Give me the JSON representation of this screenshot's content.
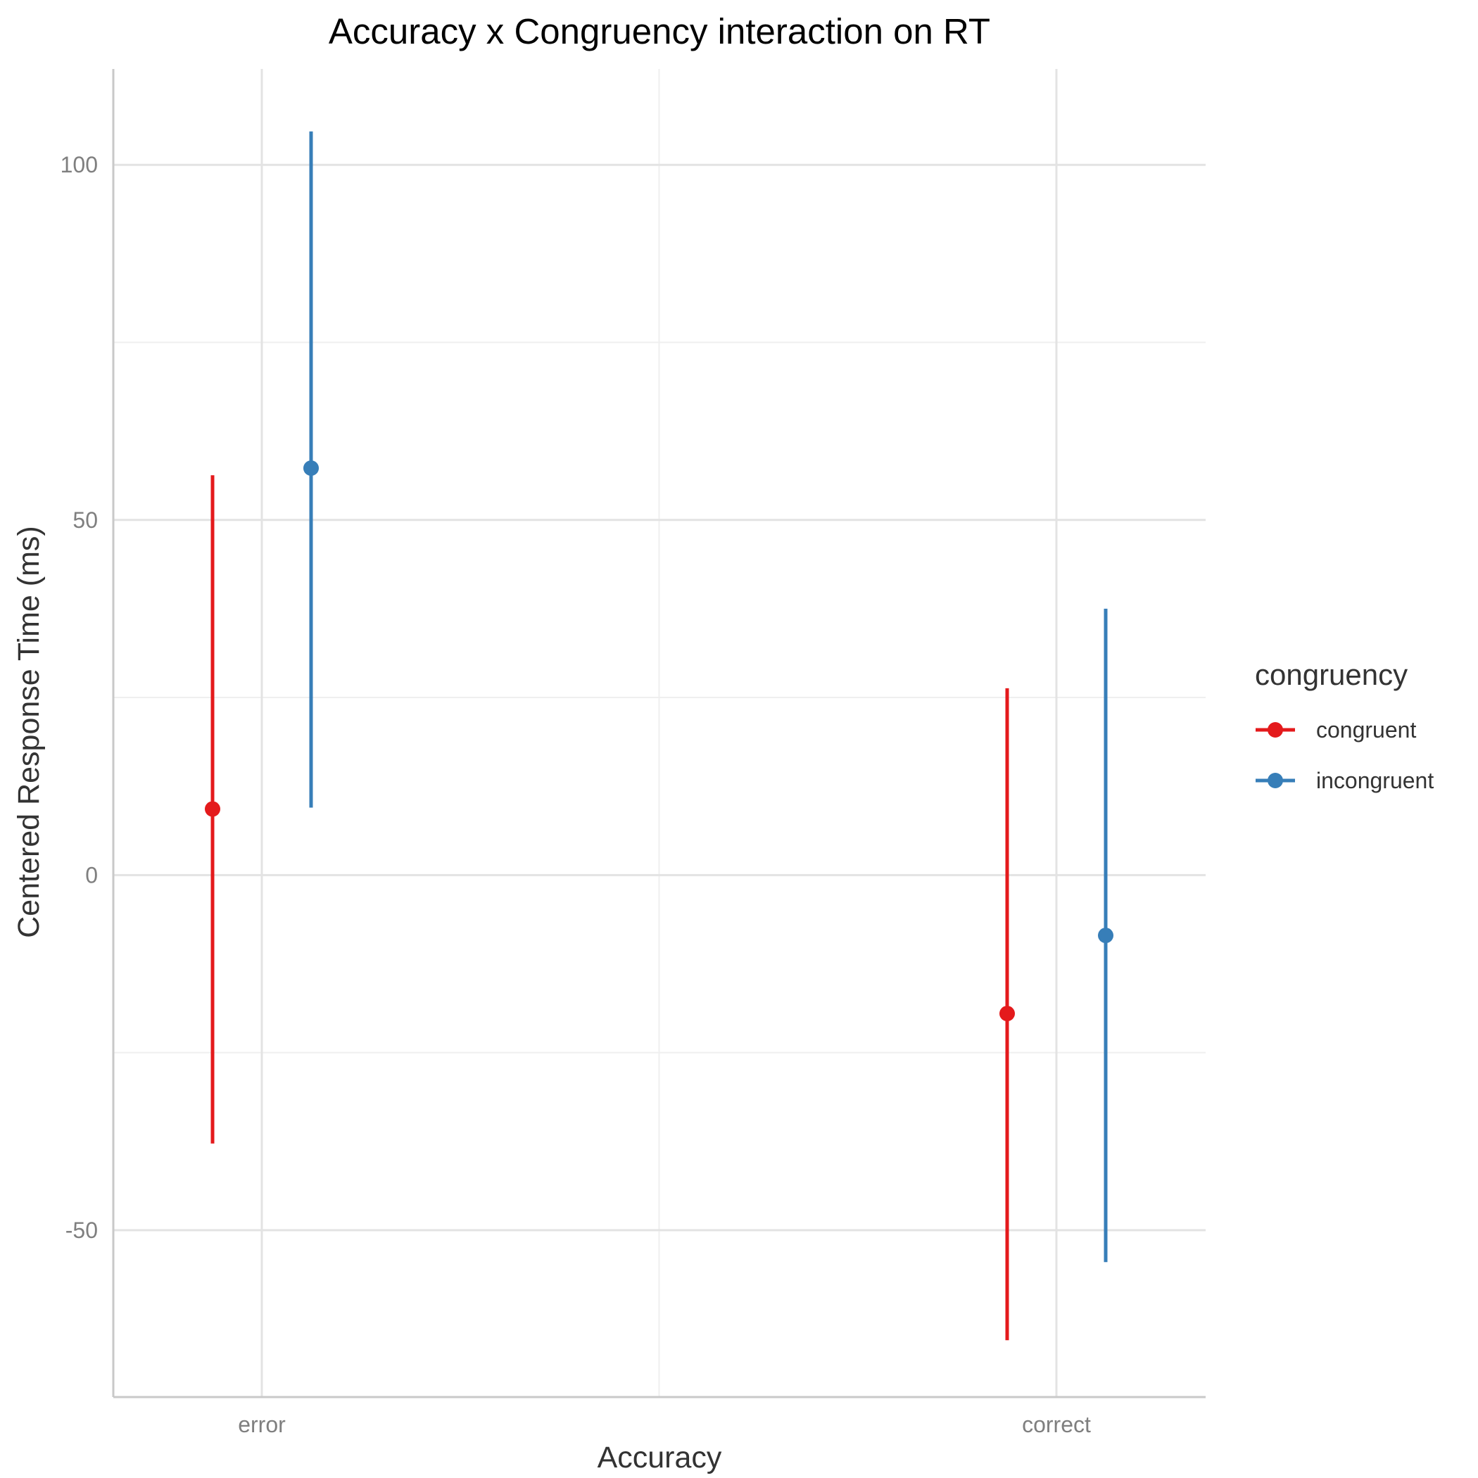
{
  "chart_data": {
    "type": "pointrange",
    "title": "Accuracy x Congruency interaction on RT",
    "xlabel": "Accuracy",
    "ylabel": "Centered Response Time (ms)",
    "categories": [
      "error",
      "correct"
    ],
    "ylim": [
      -73.5,
      113.5
    ],
    "yticks": [
      -50,
      0,
      50,
      100
    ],
    "yticks_labels": [
      "-50",
      "0",
      "50",
      "100"
    ],
    "grid": true,
    "legend": {
      "title": "congruency",
      "position": "right"
    },
    "series": [
      {
        "name": "congruent",
        "color": "#e41a1c",
        "values": [
          9.3,
          -19.5
        ],
        "lower": [
          -37.8,
          -65.5
        ],
        "upper": [
          56.3,
          26.3
        ]
      },
      {
        "name": "incongruent",
        "color": "#377eb8",
        "values": [
          57.3,
          -8.5
        ],
        "lower": [
          9.5,
          -54.5
        ],
        "upper": [
          104.7,
          37.5
        ]
      }
    ]
  }
}
